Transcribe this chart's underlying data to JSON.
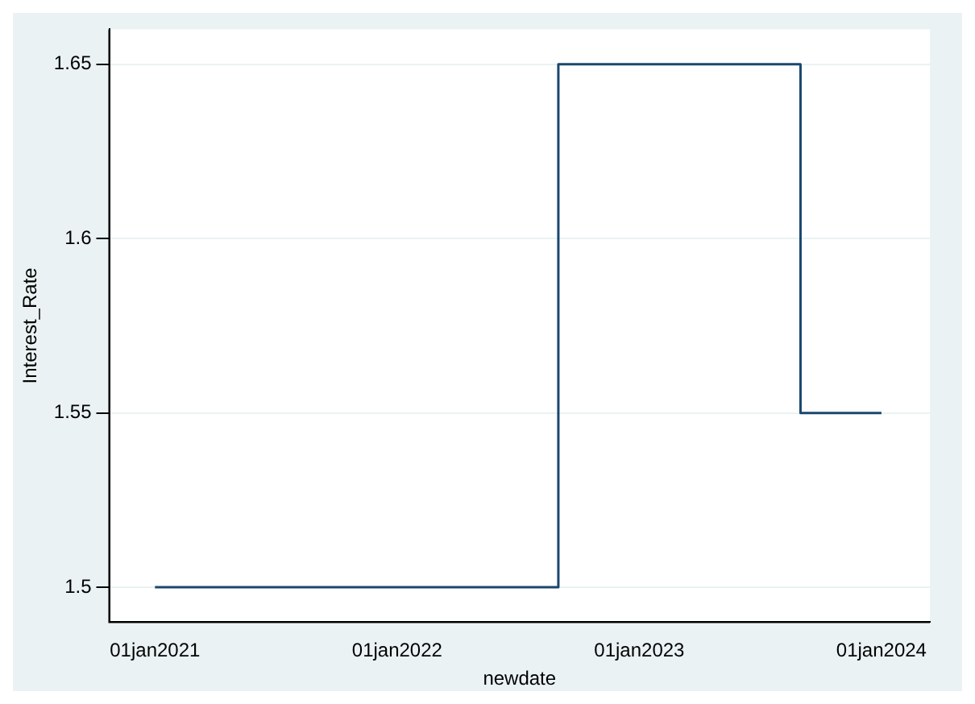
{
  "chart_data": {
    "type": "step",
    "xlabel": "newdate",
    "ylabel": "Interest_Rate",
    "x": [
      "2021-01-01",
      "2022-09-01",
      "2023-09-01",
      "2024-01-01"
    ],
    "series": [
      {
        "color": "#1a476f",
        "values": [
          1.5,
          1.65,
          1.55,
          1.55
        ]
      }
    ],
    "xlim": [
      "2020-10-24",
      "2024-03-14"
    ],
    "xticks": [
      {
        "value": "2021-01-01",
        "label": "01jan2021"
      },
      {
        "value": "2022-01-01",
        "label": "01jan2022"
      },
      {
        "value": "2023-01-01",
        "label": "01jan2023"
      },
      {
        "value": "2024-01-01",
        "label": "01jan2024"
      }
    ],
    "ylim": [
      1.49,
      1.66
    ],
    "yticks": [
      1.5,
      1.55,
      1.6,
      1.65
    ],
    "grid": "y",
    "legend": false
  }
}
